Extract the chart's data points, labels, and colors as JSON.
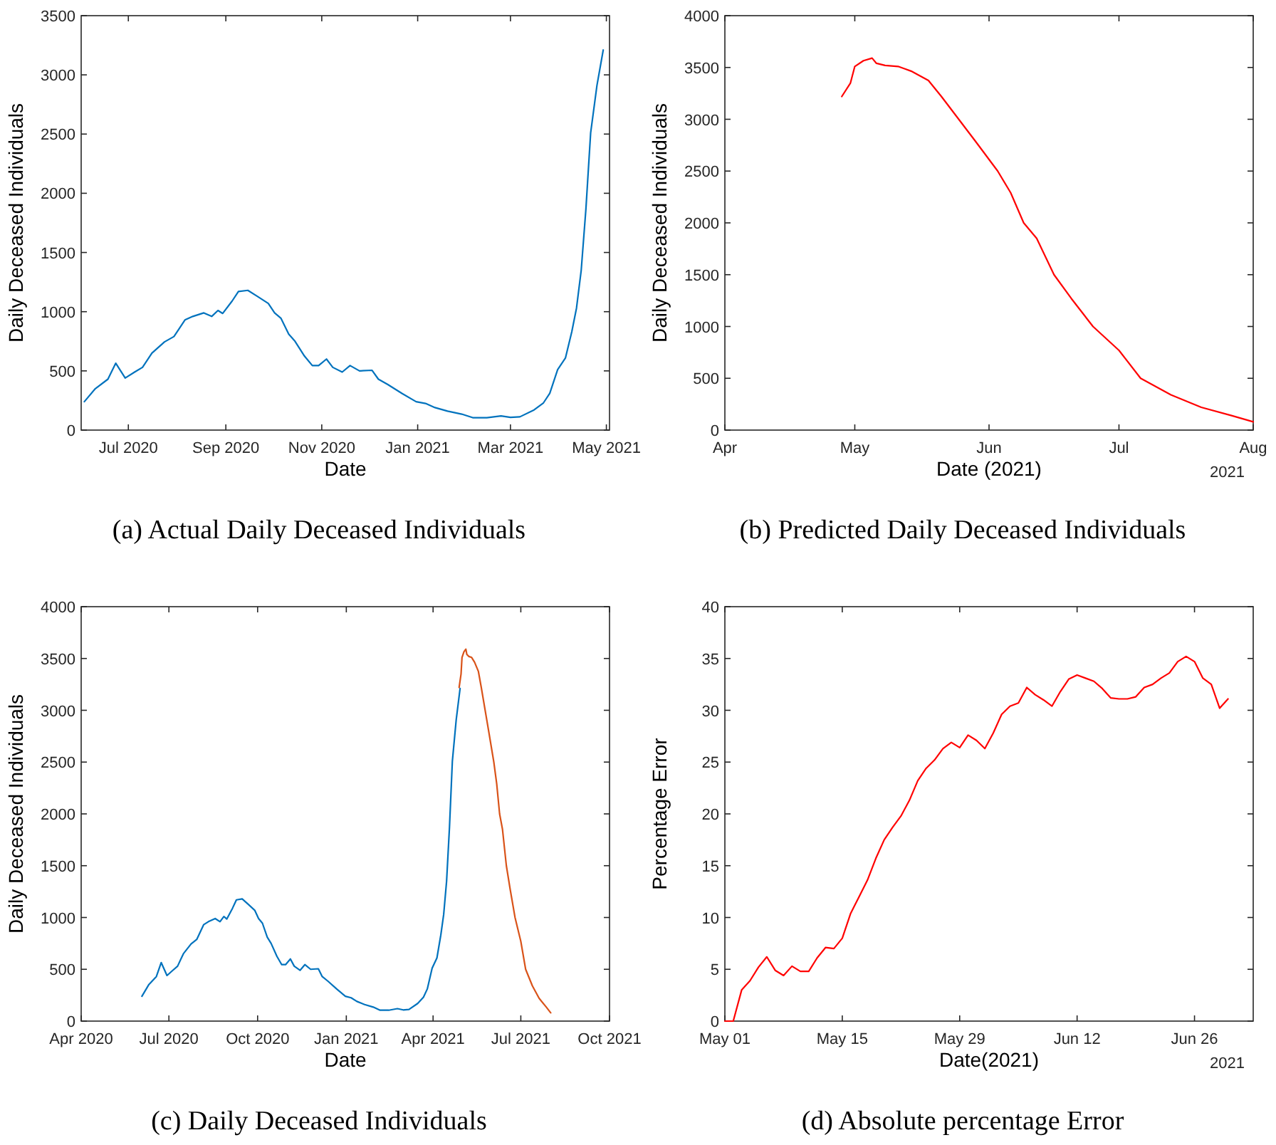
{
  "chart_data": [
    {
      "type": "line",
      "title": "(a) Actual Daily Deceased Individuals",
      "xlabel": "Date",
      "ylabel": "Daily Deceased Individuals",
      "xlim": [
        "2020-06-01",
        "2021-05-03"
      ],
      "xticks": [
        {
          "value": "2020-07-01",
          "label": "Jul 2020"
        },
        {
          "value": "2020-09-01",
          "label": "Sep 2020"
        },
        {
          "value": "2020-11-01",
          "label": "Nov 2020"
        },
        {
          "value": "2021-01-01",
          "label": "Jan 2021"
        },
        {
          "value": "2021-03-01",
          "label": "Mar 2021"
        },
        {
          "value": "2021-05-01",
          "label": "May 2021"
        }
      ],
      "ylim": [
        0,
        3500
      ],
      "yticks": [
        0,
        500,
        1000,
        1500,
        2000,
        2500,
        3000,
        3500
      ],
      "series": [
        {
          "color": "#0072bd",
          "x": [
            "2020-06-03",
            "2020-06-10",
            "2020-06-18",
            "2020-06-23",
            "2020-06-29",
            "2020-07-05",
            "2020-07-10",
            "2020-07-16",
            "2020-07-24",
            "2020-07-30",
            "2020-08-06",
            "2020-08-11",
            "2020-08-18",
            "2020-08-23",
            "2020-08-27",
            "2020-08-30",
            "2020-09-05",
            "2020-09-09",
            "2020-09-15",
            "2020-09-21",
            "2020-09-28",
            "2020-10-02",
            "2020-10-06",
            "2020-10-11",
            "2020-10-15",
            "2020-10-21",
            "2020-10-26",
            "2020-10-30",
            "2020-11-04",
            "2020-11-08",
            "2020-11-14",
            "2020-11-19",
            "2020-11-25",
            "2020-12-03",
            "2020-12-07",
            "2020-12-13",
            "2020-12-22",
            "2020-12-31",
            "2021-01-06",
            "2021-01-12",
            "2021-01-20",
            "2021-01-29",
            "2021-02-05",
            "2021-02-14",
            "2021-02-23",
            "2021-03-01",
            "2021-03-07",
            "2021-03-16",
            "2021-03-22",
            "2021-03-26",
            "2021-03-31",
            "2021-04-05",
            "2021-04-09",
            "2021-04-12",
            "2021-04-15",
            "2021-04-18",
            "2021-04-21",
            "2021-04-25",
            "2021-04-29"
          ],
          "values": [
            240,
            350,
            430,
            565,
            440,
            490,
            530,
            650,
            745,
            790,
            930,
            960,
            990,
            960,
            1010,
            985,
            1090,
            1170,
            1180,
            1130,
            1070,
            990,
            945,
            810,
            750,
            625,
            545,
            545,
            600,
            530,
            490,
            545,
            500,
            505,
            430,
            385,
            310,
            240,
            225,
            190,
            160,
            135,
            105,
            105,
            120,
            108,
            112,
            170,
            230,
            310,
            510,
            610,
            830,
            1030,
            1350,
            1870,
            2510,
            2910,
            3210
          ]
        }
      ]
    },
    {
      "type": "line",
      "title": "(b) Predicted Daily Deceased Individuals",
      "xlabel": "Date (2021)",
      "ylabel": "Daily Deceased Individuals",
      "xlim": [
        "2021-04-01",
        "2021-08-01"
      ],
      "xticks": [
        {
          "value": "2021-04-01",
          "label": "Apr"
        },
        {
          "value": "2021-05-01",
          "label": "May"
        },
        {
          "value": "2021-06-01",
          "label": "Jun"
        },
        {
          "value": "2021-07-01",
          "label": "Jul"
        },
        {
          "value": "2021-08-01",
          "label": "Aug"
        }
      ],
      "ylim": [
        0,
        4000
      ],
      "yticks": [
        0,
        500,
        1000,
        1500,
        2000,
        2500,
        3000,
        3500,
        4000
      ],
      "annotations": [
        "2021"
      ],
      "series": [
        {
          "color": "#ff0000",
          "x": [
            "2021-04-28",
            "2021-04-30",
            "2021-05-01",
            "2021-05-03",
            "2021-05-05",
            "2021-05-06",
            "2021-05-08",
            "2021-05-11",
            "2021-05-14",
            "2021-05-18",
            "2021-05-21",
            "2021-05-25",
            "2021-05-29",
            "2021-06-03",
            "2021-06-06",
            "2021-06-09",
            "2021-06-12",
            "2021-06-16",
            "2021-06-20",
            "2021-06-25",
            "2021-07-01",
            "2021-07-06",
            "2021-07-13",
            "2021-07-20",
            "2021-07-27",
            "2021-08-01"
          ],
          "values": [
            3220,
            3350,
            3510,
            3565,
            3590,
            3540,
            3520,
            3510,
            3465,
            3375,
            3220,
            3000,
            2780,
            2500,
            2290,
            2000,
            1850,
            1500,
            1270,
            1000,
            770,
            500,
            340,
            220,
            140,
            80
          ]
        }
      ]
    },
    {
      "type": "line",
      "title": "(c) Daily Deceased Individuals",
      "xlabel": "Date",
      "ylabel": "Daily Deceased Individuals",
      "xlim": [
        "2020-04-01",
        "2021-10-01"
      ],
      "xticks": [
        {
          "value": "2020-04-01",
          "label": "Apr 2020"
        },
        {
          "value": "2020-07-01",
          "label": "Jul 2020"
        },
        {
          "value": "2020-10-01",
          "label": "Oct 2020"
        },
        {
          "value": "2021-01-01",
          "label": "Jan 2021"
        },
        {
          "value": "2021-04-01",
          "label": "Apr 2021"
        },
        {
          "value": "2021-07-01",
          "label": "Jul 2021"
        },
        {
          "value": "2021-10-01",
          "label": "Oct 2021"
        }
      ],
      "ylim": [
        0,
        4000
      ],
      "yticks": [
        0,
        500,
        1000,
        1500,
        2000,
        2500,
        3000,
        3500,
        4000
      ],
      "series": [
        {
          "color": "#0072bd",
          "x": [
            "2020-06-03",
            "2020-06-10",
            "2020-06-18",
            "2020-06-23",
            "2020-06-29",
            "2020-07-05",
            "2020-07-10",
            "2020-07-16",
            "2020-07-24",
            "2020-07-30",
            "2020-08-06",
            "2020-08-11",
            "2020-08-18",
            "2020-08-23",
            "2020-08-27",
            "2020-08-30",
            "2020-09-05",
            "2020-09-09",
            "2020-09-15",
            "2020-09-21",
            "2020-09-28",
            "2020-10-02",
            "2020-10-06",
            "2020-10-11",
            "2020-10-15",
            "2020-10-21",
            "2020-10-26",
            "2020-10-30",
            "2020-11-04",
            "2020-11-08",
            "2020-11-14",
            "2020-11-19",
            "2020-11-25",
            "2020-12-03",
            "2020-12-07",
            "2020-12-13",
            "2020-12-22",
            "2020-12-31",
            "2021-01-06",
            "2021-01-12",
            "2021-01-20",
            "2021-01-29",
            "2021-02-05",
            "2021-02-14",
            "2021-02-23",
            "2021-03-01",
            "2021-03-07",
            "2021-03-16",
            "2021-03-22",
            "2021-03-26",
            "2021-03-31",
            "2021-04-05",
            "2021-04-09",
            "2021-04-12",
            "2021-04-15",
            "2021-04-18",
            "2021-04-21",
            "2021-04-25",
            "2021-04-29"
          ],
          "values": [
            240,
            350,
            430,
            565,
            440,
            490,
            530,
            650,
            745,
            790,
            930,
            960,
            990,
            960,
            1010,
            985,
            1090,
            1170,
            1180,
            1130,
            1070,
            990,
            945,
            810,
            750,
            625,
            545,
            545,
            600,
            530,
            490,
            545,
            500,
            505,
            430,
            385,
            310,
            240,
            225,
            190,
            160,
            135,
            105,
            105,
            120,
            108,
            112,
            170,
            230,
            310,
            510,
            610,
            830,
            1030,
            1350,
            1870,
            2510,
            2910,
            3210
          ]
        },
        {
          "color": "#d95319",
          "x": [
            "2021-04-28",
            "2021-04-30",
            "2021-05-01",
            "2021-05-03",
            "2021-05-05",
            "2021-05-06",
            "2021-05-08",
            "2021-05-11",
            "2021-05-14",
            "2021-05-18",
            "2021-05-21",
            "2021-05-25",
            "2021-05-29",
            "2021-06-03",
            "2021-06-06",
            "2021-06-09",
            "2021-06-12",
            "2021-06-16",
            "2021-06-20",
            "2021-06-25",
            "2021-07-01",
            "2021-07-06",
            "2021-07-13",
            "2021-07-20",
            "2021-07-27",
            "2021-08-01"
          ],
          "values": [
            3220,
            3350,
            3510,
            3565,
            3590,
            3540,
            3520,
            3510,
            3465,
            3375,
            3220,
            3000,
            2780,
            2500,
            2290,
            2000,
            1850,
            1500,
            1270,
            1000,
            770,
            500,
            340,
            220,
            140,
            80
          ]
        }
      ]
    },
    {
      "type": "line",
      "title": "(d) Absolute percentage Error",
      "xlabel": "Date(2021)",
      "ylabel": "Percentage Error",
      "xlim": [
        "2021-05-01",
        "2021-07-03"
      ],
      "xticks": [
        {
          "value": "2021-05-01",
          "label": "May 01"
        },
        {
          "value": "2021-05-15",
          "label": "May 15"
        },
        {
          "value": "2021-05-29",
          "label": "May 29"
        },
        {
          "value": "2021-06-12",
          "label": "Jun 12"
        },
        {
          "value": "2021-06-26",
          "label": "Jun 26"
        }
      ],
      "ylim": [
        0,
        40
      ],
      "yticks": [
        0,
        5,
        10,
        15,
        20,
        25,
        30,
        35,
        40
      ],
      "annotations": [
        "2021"
      ],
      "series": [
        {
          "color": "#ff0000",
          "x": [
            "2021-05-01",
            "2021-05-02",
            "2021-05-03",
            "2021-05-04",
            "2021-05-05",
            "2021-05-06",
            "2021-05-07",
            "2021-05-08",
            "2021-05-09",
            "2021-05-10",
            "2021-05-11",
            "2021-05-12",
            "2021-05-13",
            "2021-05-14",
            "2021-05-15",
            "2021-05-16",
            "2021-05-17",
            "2021-05-18",
            "2021-05-19",
            "2021-05-20",
            "2021-05-21",
            "2021-05-22",
            "2021-05-23",
            "2021-05-24",
            "2021-05-25",
            "2021-05-26",
            "2021-05-27",
            "2021-05-28",
            "2021-05-29",
            "2021-05-30",
            "2021-05-31",
            "2021-06-01",
            "2021-06-02",
            "2021-06-03",
            "2021-06-04",
            "2021-06-05",
            "2021-06-06",
            "2021-06-07",
            "2021-06-08",
            "2021-06-09",
            "2021-06-10",
            "2021-06-11",
            "2021-06-12",
            "2021-06-13",
            "2021-06-14",
            "2021-06-15",
            "2021-06-16",
            "2021-06-17",
            "2021-06-18",
            "2021-06-19",
            "2021-06-20",
            "2021-06-21",
            "2021-06-22",
            "2021-06-23",
            "2021-06-24",
            "2021-06-25",
            "2021-06-26",
            "2021-06-27",
            "2021-06-28",
            "2021-06-29",
            "2021-06-30"
          ],
          "values": [
            0,
            0,
            3.0,
            3.9,
            5.2,
            6.2,
            4.9,
            4.4,
            5.3,
            4.8,
            4.8,
            6.1,
            7.1,
            7.0,
            8.0,
            10.4,
            12.0,
            13.6,
            15.7,
            17.5,
            18.7,
            19.8,
            21.3,
            23.2,
            24.4,
            25.2,
            26.3,
            26.9,
            26.4,
            27.6,
            27.1,
            26.3,
            27.8,
            29.6,
            30.4,
            30.7,
            32.2,
            31.5,
            31.0,
            30.4,
            31.8,
            33.0,
            33.4,
            33.1,
            32.8,
            32.1,
            31.2,
            31.1,
            31.1,
            31.3,
            32.2,
            32.5,
            33.1,
            33.6,
            34.7,
            35.2,
            34.7,
            33.1,
            32.5,
            30.2,
            31.1
          ]
        }
      ]
    }
  ]
}
